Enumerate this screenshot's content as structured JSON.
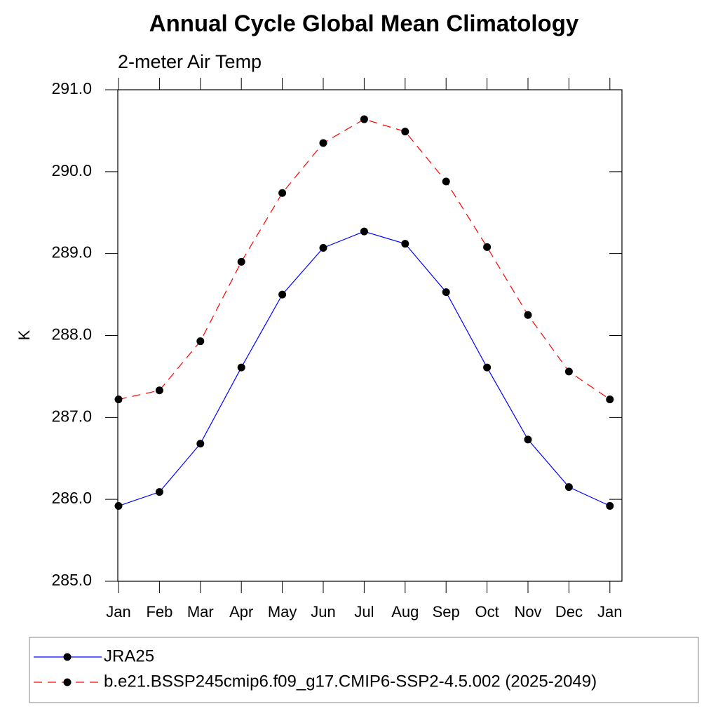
{
  "chart_data": {
    "type": "line",
    "title": "Annual Cycle Global Mean Climatology",
    "subtitle": "2-meter Air Temp",
    "y_label": "K",
    "categories": [
      "Jan",
      "Feb",
      "Mar",
      "Apr",
      "May",
      "Jun",
      "Jul",
      "Aug",
      "Sep",
      "Oct",
      "Nov",
      "Dec",
      "Jan"
    ],
    "ylim": [
      285,
      291
    ],
    "yticks": [
      {
        "value": 285,
        "label": "285.0"
      },
      {
        "value": 286,
        "label": "286.0"
      },
      {
        "value": 287,
        "label": "287.0"
      },
      {
        "value": 288,
        "label": "288.0"
      },
      {
        "value": 289,
        "label": "289.0"
      },
      {
        "value": 290,
        "label": "290.0"
      },
      {
        "value": 291,
        "label": "291.0"
      }
    ],
    "series": [
      {
        "name": "JRA25",
        "color": "#0000ff",
        "dash": "solid",
        "values": [
          285.92,
          286.09,
          286.68,
          287.61,
          288.5,
          289.07,
          289.27,
          289.12,
          288.53,
          287.61,
          286.73,
          286.15,
          285.92
        ]
      },
      {
        "name": "b.e21.BSSP245cmip6.f09_g17.CMIP6-SSP2-4.5.002 (2025-2049)",
        "color": "#ff0000",
        "dash": "dashed",
        "values": [
          287.22,
          287.33,
          287.93,
          288.9,
          289.74,
          290.35,
          290.64,
          290.49,
          289.88,
          289.08,
          288.25,
          287.56,
          287.22
        ]
      }
    ]
  }
}
